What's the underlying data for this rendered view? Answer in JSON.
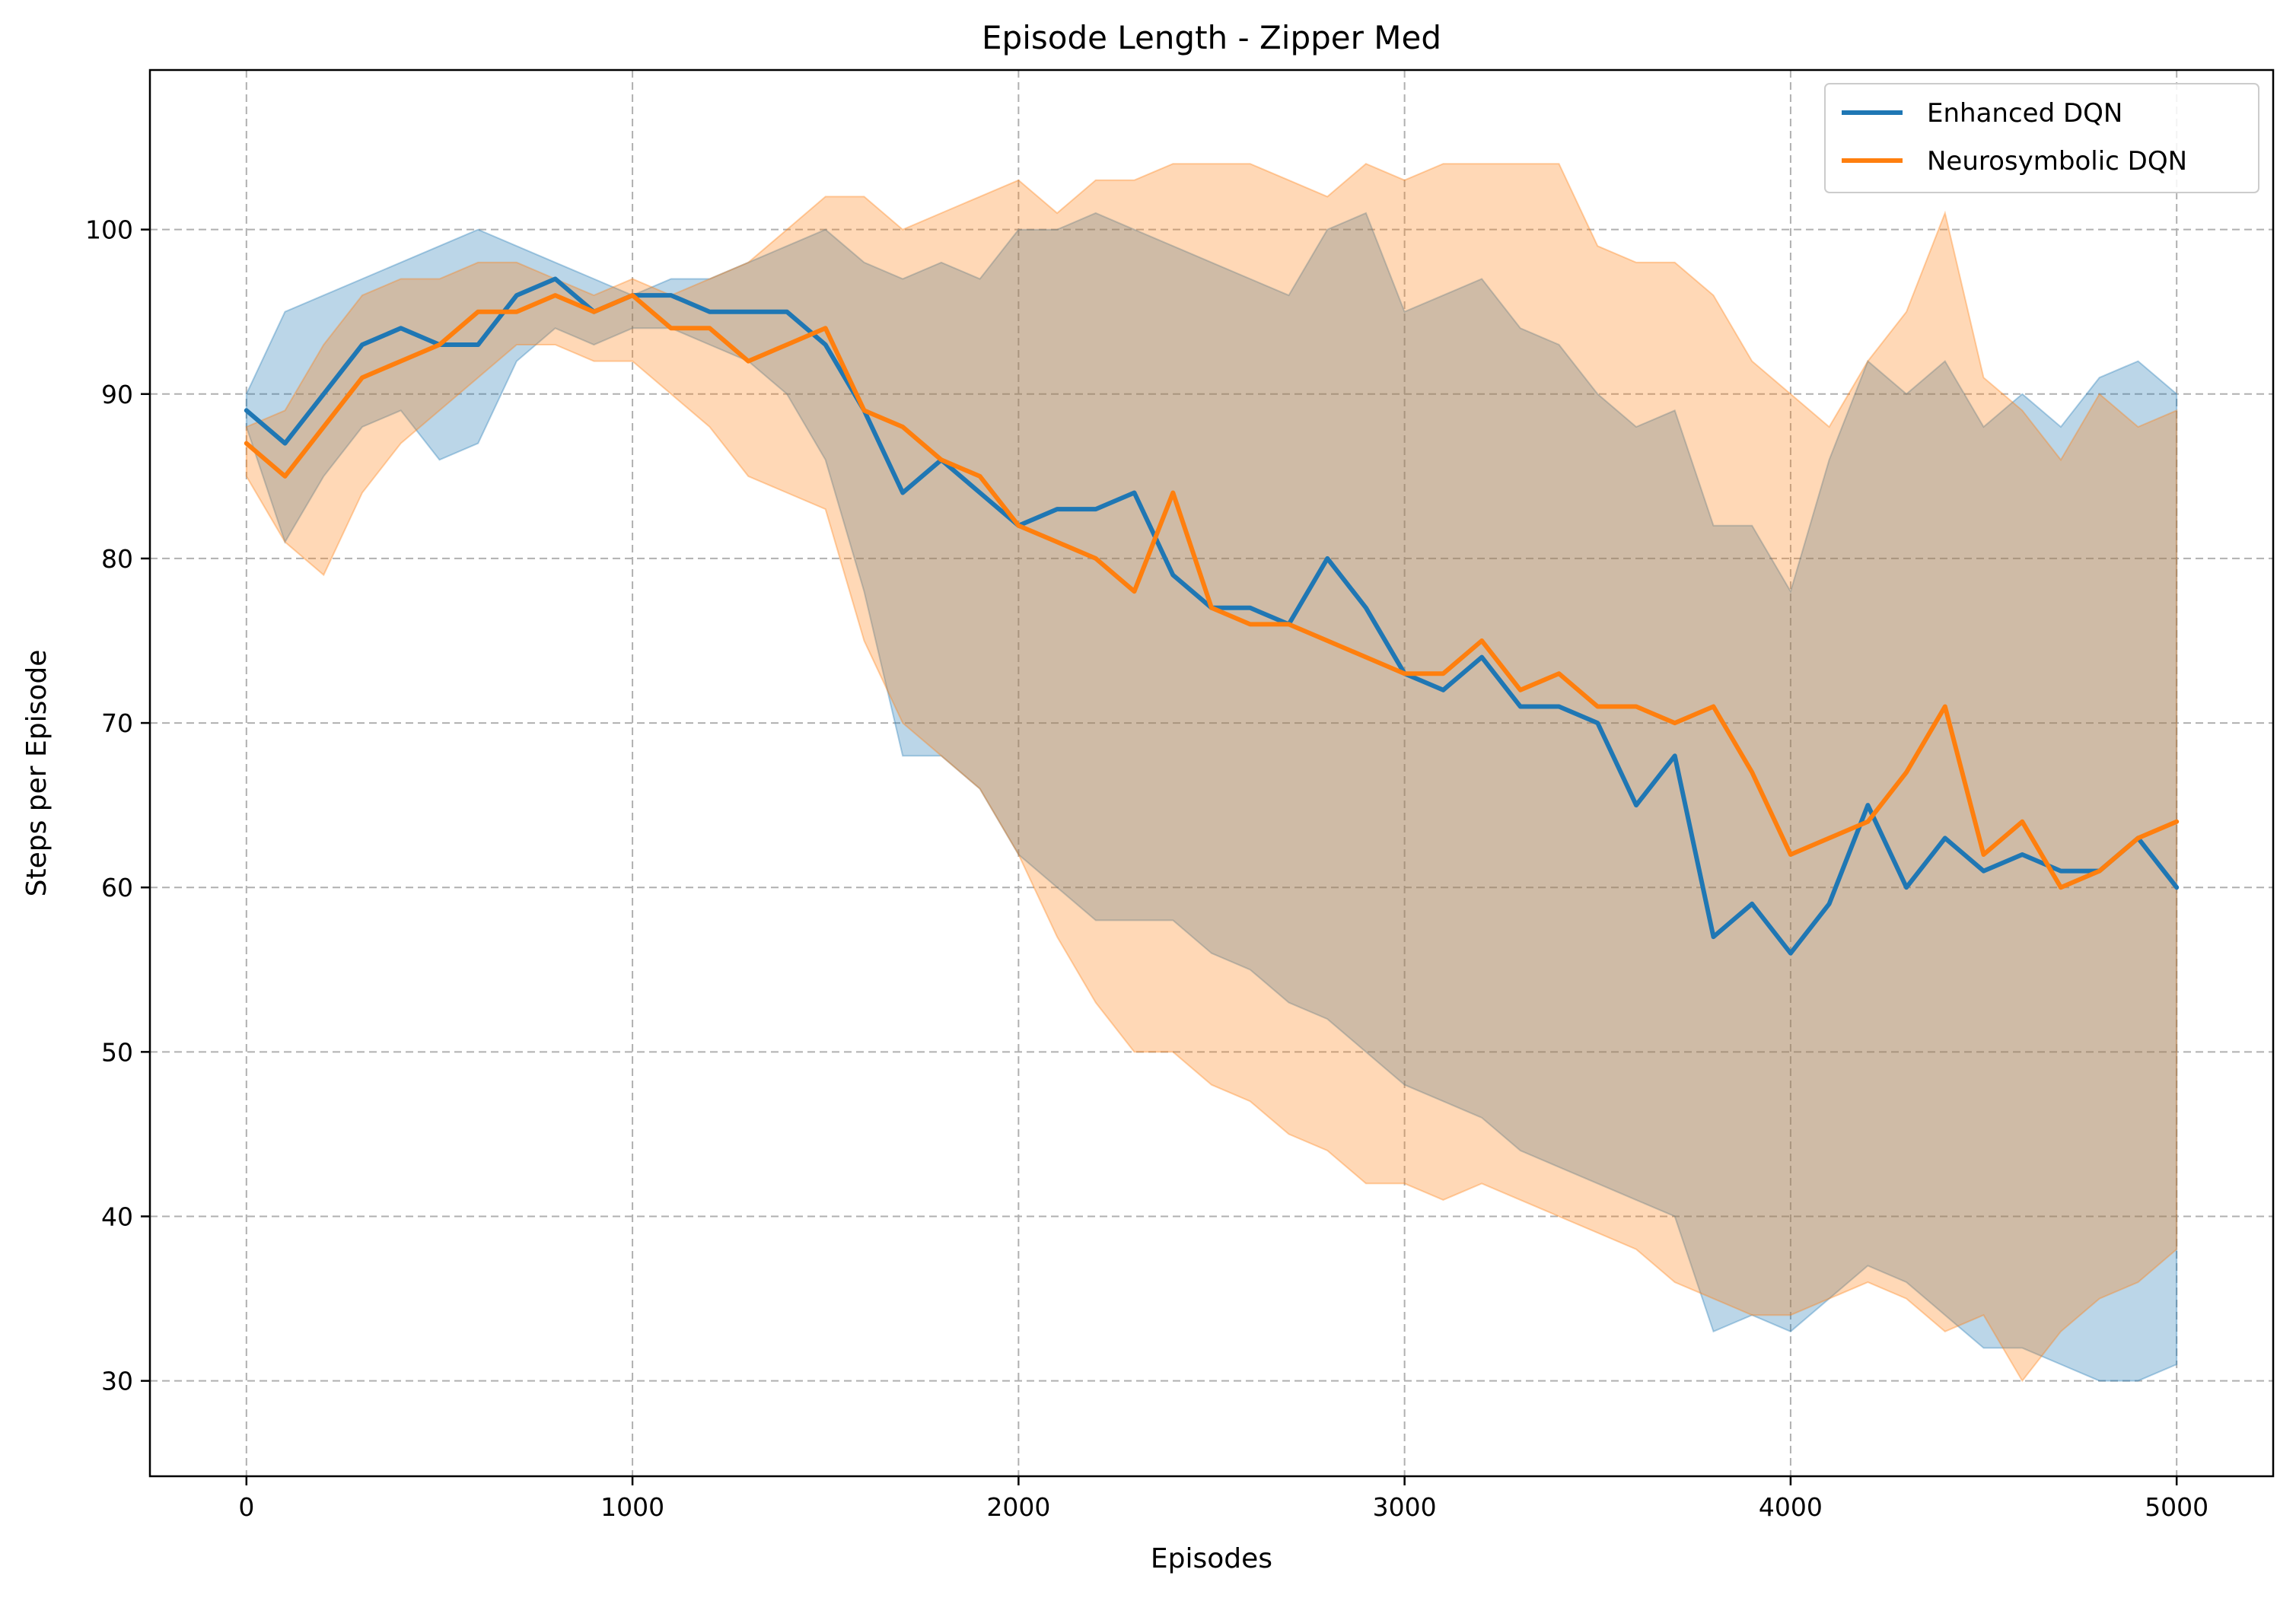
{
  "chart_data": {
    "type": "line",
    "title": "Episode Length - Zipper Med",
    "xlabel": "Episodes",
    "ylabel": "Steps per Episode",
    "xlim": [
      -250,
      5250
    ],
    "ylim": [
      24.2,
      109.7
    ],
    "xticks": [
      0,
      1000,
      2000,
      3000,
      4000,
      5000
    ],
    "yticks": [
      30,
      40,
      50,
      60,
      70,
      80,
      90,
      100
    ],
    "grid": true,
    "legend": "top-right",
    "x": [
      0,
      100,
      200,
      300,
      400,
      500,
      600,
      700,
      800,
      900,
      1000,
      1100,
      1200,
      1300,
      1400,
      1500,
      1600,
      1700,
      1800,
      1900,
      2000,
      2100,
      2200,
      2300,
      2400,
      2500,
      2600,
      2700,
      2800,
      2900,
      3000,
      3100,
      3200,
      3300,
      3400,
      3500,
      3600,
      3700,
      3800,
      3900,
      4000,
      4100,
      4200,
      4300,
      4400,
      4500,
      4600,
      4700,
      4800,
      4900,
      5000
    ],
    "series": [
      {
        "name": "Enhanced DQN",
        "color": "#1f77b4",
        "values": [
          89,
          87,
          90,
          93,
          94,
          93,
          93,
          96,
          97,
          95,
          96,
          96,
          95,
          95,
          95,
          93,
          89,
          84,
          86,
          84,
          82,
          83,
          83,
          84,
          79,
          77,
          77,
          76,
          80,
          77,
          73,
          72,
          74,
          71,
          71,
          70,
          65,
          68,
          57,
          59,
          56,
          59,
          65,
          60,
          63,
          61,
          62,
          61,
          61,
          63,
          60
        ],
        "upper": [
          90,
          95,
          96,
          97,
          98,
          99,
          100,
          99,
          98,
          97,
          96,
          97,
          97,
          98,
          99,
          100,
          98,
          97,
          98,
          97,
          100,
          100,
          101,
          100,
          99,
          98,
          97,
          96,
          100,
          101,
          95,
          96,
          97,
          94,
          93,
          90,
          88,
          89,
          82,
          82,
          78,
          86,
          92,
          90,
          92,
          88,
          90,
          88,
          91,
          92,
          90
        ],
        "lower": [
          88,
          81,
          85,
          88,
          89,
          86,
          87,
          92,
          94,
          93,
          94,
          94,
          93,
          92,
          90,
          86,
          78,
          68,
          68,
          66,
          62,
          60,
          58,
          58,
          58,
          56,
          55,
          53,
          52,
          50,
          48,
          47,
          46,
          44,
          43,
          42,
          41,
          40,
          33,
          34,
          33,
          35,
          37,
          36,
          34,
          32,
          32,
          31,
          30,
          30,
          31
        ]
      },
      {
        "name": "Neurosymbolic DQN",
        "color": "#ff7f0e",
        "values": [
          87,
          85,
          88,
          91,
          92,
          93,
          95,
          95,
          96,
          95,
          96,
          94,
          94,
          92,
          93,
          94,
          89,
          88,
          86,
          85,
          82,
          81,
          80,
          78,
          84,
          77,
          76,
          76,
          75,
          74,
          73,
          73,
          75,
          72,
          73,
          71,
          71,
          70,
          71,
          67,
          62,
          63,
          64,
          67,
          71,
          62,
          64,
          60,
          61,
          63,
          64
        ],
        "upper": [
          88,
          89,
          93,
          96,
          97,
          97,
          98,
          98,
          97,
          96,
          97,
          96,
          97,
          98,
          100,
          102,
          102,
          100,
          101,
          102,
          103,
          101,
          103,
          103,
          104,
          104,
          104,
          103,
          102,
          104,
          103,
          104,
          104,
          104,
          104,
          99,
          98,
          98,
          96,
          92,
          90,
          88,
          92,
          95,
          101,
          91,
          89,
          86,
          90,
          88,
          89
        ],
        "lower": [
          85,
          81,
          79,
          84,
          87,
          89,
          91,
          93,
          93,
          92,
          92,
          90,
          88,
          85,
          84,
          83,
          75,
          70,
          68,
          66,
          62,
          57,
          53,
          50,
          50,
          48,
          47,
          45,
          44,
          42,
          42,
          41,
          42,
          41,
          40,
          39,
          38,
          36,
          35,
          34,
          34,
          35,
          36,
          35,
          33,
          34,
          30,
          33,
          35,
          36,
          38
        ]
      }
    ]
  }
}
